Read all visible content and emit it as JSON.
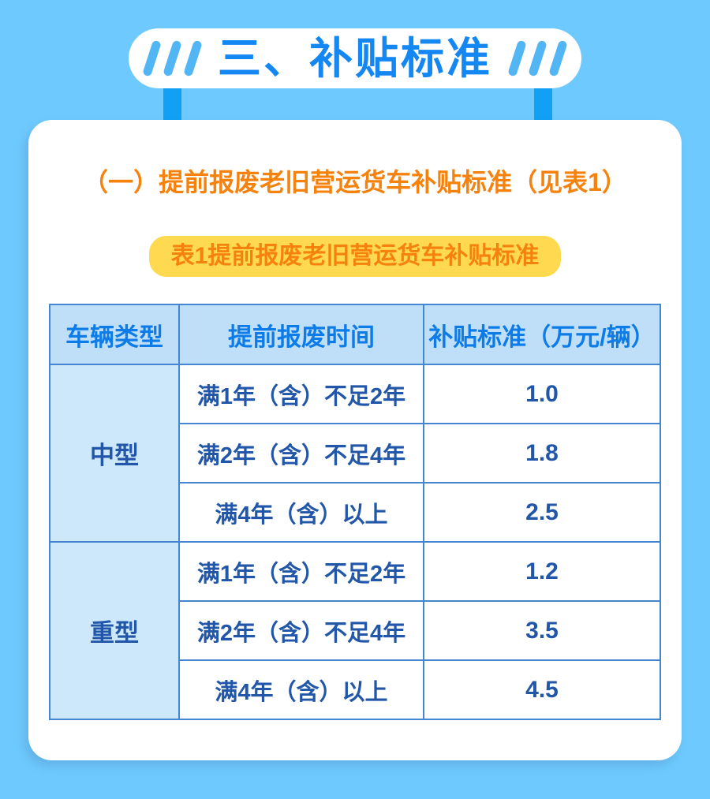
{
  "header": {
    "title": "三、补贴标准"
  },
  "section": {
    "heading": "（一）提前报废老旧营运货车补贴标准（见表1）",
    "table_caption": "表1提前报废老旧营运货车补贴标准"
  },
  "table": {
    "columns": [
      "车辆类型",
      "提前报废时间",
      "补贴标准（万元/辆）"
    ],
    "groups": [
      {
        "type": "中型",
        "rows": [
          {
            "period": "满1年（含）不足2年",
            "amount": "1.0"
          },
          {
            "period": "满2年（含）不足4年",
            "amount": "1.8"
          },
          {
            "period": "满4年（含）以上",
            "amount": "2.5"
          }
        ]
      },
      {
        "type": "重型",
        "rows": [
          {
            "period": "满1年（含）不足2年",
            "amount": "1.2"
          },
          {
            "period": "满2年（含）不足4年",
            "amount": "3.5"
          },
          {
            "period": "满4年（含）以上",
            "amount": "4.5"
          }
        ]
      }
    ]
  },
  "colors": {
    "page_background": "#6ecafe",
    "header_title_blue": "#1487f2",
    "leg_blue": "#12a0f4",
    "tick_blue": "#52b5f4",
    "heading_orange": "#f6820e",
    "caption_yellow": "#ffd950",
    "table_border_blue": "#4586d1",
    "table_header_bg": "#bfdff8",
    "table_header_text": "#0d7ce8",
    "table_body_text": "#2156a8",
    "first_column_bg": "#cde8fb"
  }
}
